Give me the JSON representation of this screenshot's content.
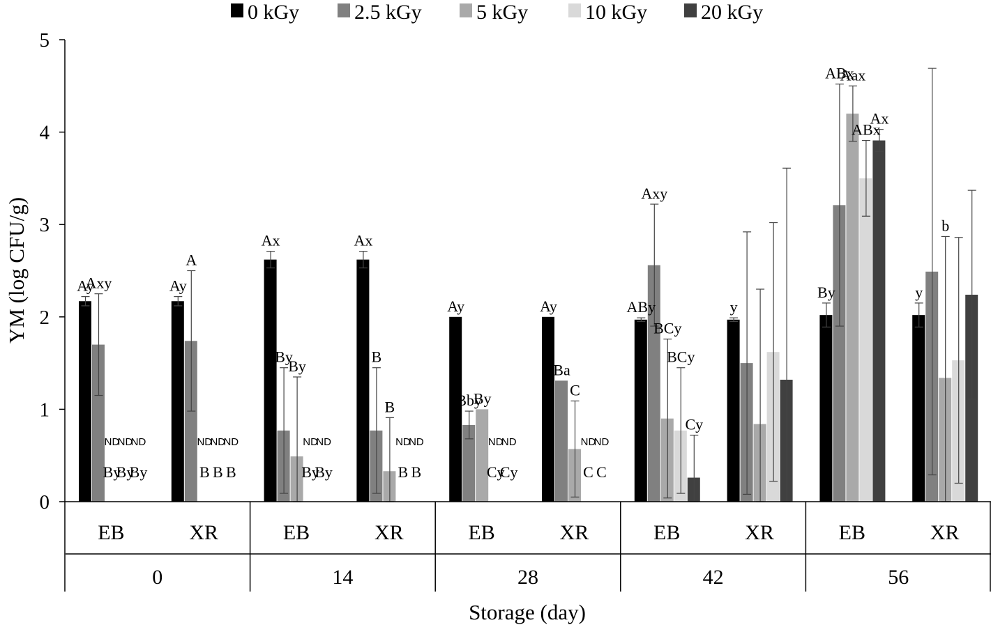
{
  "chart_data": {
    "type": "bar",
    "title": "",
    "ylabel": "YM (log CFU/g)",
    "xlabel": "Storage (day)",
    "ylim": [
      0,
      5
    ],
    "yticks": [
      0,
      1,
      2,
      3,
      4,
      5
    ],
    "legend_position": "top",
    "nd_text": "ND",
    "days": [
      "0",
      "14",
      "28",
      "42",
      "56"
    ],
    "methods": [
      "EB",
      "XR"
    ],
    "series": [
      {
        "name": "0 kGy",
        "color": "#000000"
      },
      {
        "name": "2.5 kGy",
        "color": "#808080"
      },
      {
        "name": "5 kGy",
        "color": "#a9a9a9"
      },
      {
        "name": "10 kGy",
        "color": "#d9d9d9"
      },
      {
        "name": "20 kGy",
        "color": "#404040"
      }
    ],
    "clusters": [
      {
        "day": "0",
        "method": "EB",
        "values": [
          2.17,
          1.7,
          null,
          null,
          null
        ],
        "errors": [
          0.05,
          0.55,
          null,
          null,
          null
        ],
        "labels": [
          "Ay",
          "Axy",
          "By",
          "By",
          "By"
        ]
      },
      {
        "day": "0",
        "method": "XR",
        "values": [
          2.17,
          1.74,
          null,
          null,
          null
        ],
        "errors": [
          0.05,
          0.76,
          null,
          null,
          null
        ],
        "labels": [
          "Ay",
          "A",
          "B",
          "B",
          "B"
        ]
      },
      {
        "day": "14",
        "method": "EB",
        "values": [
          2.62,
          0.77,
          0.49,
          null,
          null
        ],
        "errors": [
          0.09,
          0.68,
          0.86,
          null,
          null
        ],
        "labels": [
          "Ax",
          "By",
          "By",
          "By",
          "By"
        ]
      },
      {
        "day": "14",
        "method": "XR",
        "values": [
          2.62,
          0.77,
          0.33,
          null,
          null
        ],
        "errors": [
          0.09,
          0.68,
          0.58,
          null,
          null
        ],
        "labels": [
          "Ax",
          "B",
          "B",
          "B",
          "B"
        ]
      },
      {
        "day": "28",
        "method": "EB",
        "values": [
          2.0,
          0.83,
          1.0,
          null,
          null
        ],
        "errors": [
          0.0,
          0.15,
          0.0,
          null,
          null
        ],
        "labels": [
          "Ay",
          "Bby",
          "By",
          "Cy",
          "Cy"
        ]
      },
      {
        "day": "28",
        "method": "XR",
        "values": [
          2.0,
          1.31,
          0.57,
          null,
          null
        ],
        "errors": [
          0.0,
          0.0,
          0.52,
          null,
          null
        ],
        "labels": [
          "Ay",
          "Ba",
          "C",
          "C",
          "C"
        ]
      },
      {
        "day": "42",
        "method": "EB",
        "values": [
          1.97,
          2.56,
          0.9,
          0.77,
          0.26
        ],
        "errors": [
          0.02,
          0.66,
          0.86,
          0.68,
          0.46
        ],
        "labels": [
          "ABy",
          "Axy",
          "BCy",
          "BCy",
          "Cy"
        ]
      },
      {
        "day": "42",
        "method": "XR",
        "values": [
          1.97,
          1.5,
          0.84,
          1.62,
          1.32
        ],
        "errors": [
          0.02,
          1.42,
          1.46,
          1.4,
          2.29
        ],
        "labels": [
          "y",
          "",
          "",
          "",
          ""
        ]
      },
      {
        "day": "56",
        "method": "EB",
        "values": [
          2.02,
          3.21,
          4.2,
          3.5,
          3.91
        ],
        "errors": [
          0.13,
          1.31,
          0.3,
          0.41,
          0.12
        ],
        "labels": [
          "By",
          "ABx",
          "Aax",
          "ABx",
          "Ax"
        ]
      },
      {
        "day": "56",
        "method": "XR",
        "values": [
          2.02,
          2.49,
          1.34,
          1.53,
          2.24
        ],
        "errors": [
          0.13,
          2.2,
          1.53,
          1.33,
          1.13
        ],
        "labels": [
          "y",
          "",
          "b",
          "",
          ""
        ]
      }
    ]
  }
}
